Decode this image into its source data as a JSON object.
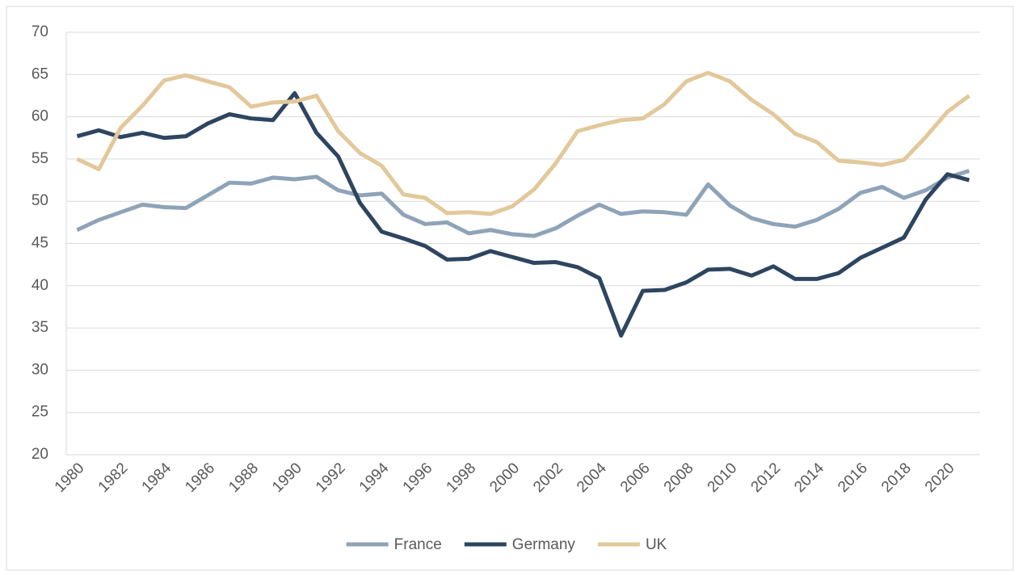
{
  "chart_data": {
    "type": "line",
    "x": [
      1980,
      1981,
      1982,
      1983,
      1984,
      1985,
      1986,
      1987,
      1988,
      1989,
      1990,
      1991,
      1992,
      1993,
      1994,
      1995,
      1996,
      1997,
      1998,
      1999,
      2000,
      2001,
      2002,
      2003,
      2004,
      2005,
      2006,
      2007,
      2008,
      2009,
      2010,
      2011,
      2012,
      2013,
      2014,
      2015,
      2016,
      2017,
      2018,
      2019,
      2020,
      2021
    ],
    "series": [
      {
        "name": "France",
        "color": "#8fa3b8",
        "values": [
          46.6,
          47.8,
          48.7,
          49.6,
          49.3,
          49.2,
          50.7,
          52.2,
          52.1,
          52.8,
          52.6,
          52.9,
          51.3,
          50.7,
          50.9,
          48.4,
          47.3,
          47.5,
          46.2,
          46.6,
          46.1,
          45.9,
          46.8,
          48.3,
          49.6,
          48.5,
          48.8,
          48.7,
          48.4,
          52.0,
          49.5,
          48.0,
          47.3,
          47.0,
          47.8,
          49.1,
          51.0,
          51.7,
          50.4,
          51.3,
          52.8,
          53.6
        ]
      },
      {
        "name": "Germany",
        "color": "#2e4560",
        "values": [
          57.7,
          58.4,
          57.6,
          58.1,
          57.5,
          57.7,
          59.2,
          60.3,
          59.8,
          59.6,
          62.8,
          58.1,
          55.3,
          49.8,
          46.4,
          45.6,
          44.7,
          43.1,
          43.2,
          44.1,
          43.4,
          42.7,
          42.8,
          42.2,
          40.9,
          34.1,
          39.4,
          39.5,
          40.4,
          41.9,
          42.0,
          41.2,
          42.3,
          40.8,
          40.8,
          41.5,
          43.3,
          44.5,
          45.7,
          50.2,
          53.2,
          52.5
        ]
      },
      {
        "name": "UK",
        "color": "#e2c89a",
        "values": [
          55.0,
          53.8,
          58.7,
          61.3,
          64.3,
          64.9,
          64.2,
          63.5,
          61.2,
          61.7,
          61.8,
          62.5,
          58.3,
          55.7,
          54.2,
          50.8,
          50.4,
          48.6,
          48.7,
          48.5,
          49.4,
          51.4,
          54.5,
          58.3,
          59.0,
          59.6,
          59.8,
          61.5,
          64.2,
          65.2,
          64.2,
          62.0,
          60.3,
          58.0,
          57.0,
          54.8,
          54.6,
          54.3,
          54.9,
          57.6,
          60.6,
          62.5
        ]
      }
    ],
    "xlim": [
      1979.5,
      2021.5
    ],
    "xticks": [
      1980,
      1982,
      1984,
      1986,
      1988,
      1990,
      1992,
      1994,
      1996,
      1998,
      2000,
      2002,
      2004,
      2006,
      2008,
      2010,
      2012,
      2014,
      2016,
      2018,
      2020
    ],
    "ylim": [
      20,
      70
    ],
    "yticks": [
      20,
      25,
      30,
      35,
      40,
      45,
      50,
      55,
      60,
      65,
      70
    ],
    "grid": true,
    "legend": "bottom"
  }
}
